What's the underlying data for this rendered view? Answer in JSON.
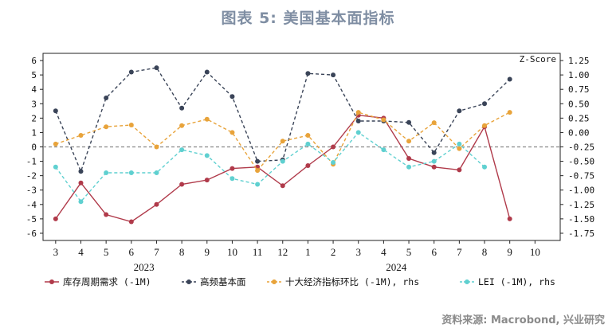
{
  "header": {
    "title": "图表 5: 美国基本面指标"
  },
  "footer": {
    "source": "资料来源: Macrobond, 兴业研究"
  },
  "chart_data": {
    "type": "line",
    "x": [
      "3",
      "4",
      "5",
      "6",
      "7",
      "8",
      "9",
      "10",
      "11",
      "12",
      "1",
      "2",
      "3",
      "4",
      "5",
      "6",
      "7",
      "8",
      "9",
      "10"
    ],
    "year_labels": [
      {
        "label": "2023",
        "center_index": 4
      },
      {
        "label": "2024",
        "center_index": 14
      }
    ],
    "left_axis": {
      "ylim": [
        -6.5,
        6.5
      ],
      "ticks": [
        "6",
        "5",
        "4",
        "3",
        "2",
        "1",
        "0",
        "-1",
        "-2",
        "-3",
        "-4",
        "-5",
        "-6"
      ]
    },
    "right_axis": {
      "label": "Z-Score",
      "ylim": [
        -1.875,
        1.375
      ],
      "ticks": [
        "1.25",
        "1.00",
        "0.75",
        "0.50",
        "0.25",
        "0.00",
        "-0.25",
        "-0.50",
        "-0.75",
        "-1.00",
        "-1.25",
        "-1.50",
        "-1.75"
      ]
    },
    "zero_line": 0,
    "series": [
      {
        "name": "库存周期需求 (-1M)",
        "axis": "left",
        "color": "#b03a4a",
        "dash": false,
        "values": [
          -5.0,
          -2.5,
          -4.7,
          -5.2,
          -4.0,
          -2.6,
          -2.3,
          -1.5,
          -1.4,
          -2.7,
          -1.3,
          0.0,
          2.2,
          2.0,
          -0.8,
          -1.4,
          -1.6,
          1.4,
          -5.0,
          null
        ]
      },
      {
        "name": "高频基本面",
        "axis": "left",
        "color": "#3a4458",
        "dash": true,
        "values": [
          2.5,
          -1.7,
          3.4,
          5.2,
          5.5,
          2.7,
          5.2,
          3.5,
          -1.0,
          -0.9,
          5.1,
          5.0,
          1.8,
          1.8,
          1.7,
          -0.4,
          2.5,
          3.0,
          4.7,
          null
        ]
      },
      {
        "name": "十大经济指标环比 (-1M), rhs",
        "axis": "right",
        "color": "#e8a33a",
        "dash": true,
        "values": [
          -0.2,
          -0.05,
          0.1,
          0.13,
          -0.25,
          0.12,
          0.23,
          0.0,
          -0.66,
          -0.15,
          -0.05,
          -0.55,
          0.35,
          0.22,
          -0.15,
          0.17,
          -0.28,
          0.12,
          0.35,
          null
        ]
      },
      {
        "name": "LEI (-1M), rhs",
        "axis": "right",
        "color": "#5fd0d0",
        "dash": true,
        "values": [
          -0.6,
          -1.2,
          -0.7,
          -0.7,
          -0.7,
          -0.3,
          -0.4,
          -0.8,
          -0.9,
          -0.5,
          -0.2,
          -0.52,
          0.0,
          -0.3,
          -0.6,
          -0.5,
          -0.2,
          -0.6,
          null,
          null
        ]
      }
    ]
  }
}
